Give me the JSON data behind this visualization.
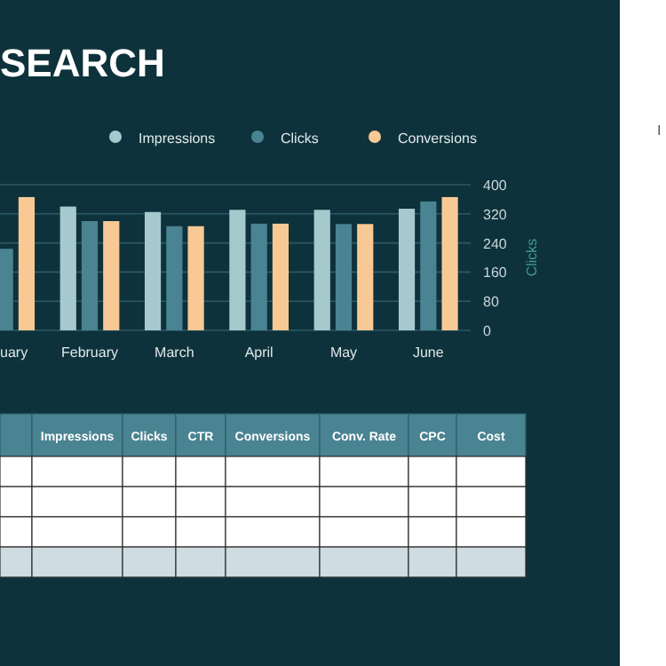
{
  "chart_data": [
    {
      "type": "bar",
      "title": "SEARCH",
      "categories": [
        "uary",
        "February",
        "March",
        "April",
        "May",
        "June"
      ],
      "series": [
        {
          "name": "Impressions",
          "color": "#a6c9ce",
          "values": [
            null,
            340,
            325,
            331,
            331,
            334
          ]
        },
        {
          "name": "Clicks",
          "color": "#4a8391",
          "values": [
            224,
            300,
            286,
            293,
            292,
            354
          ]
        },
        {
          "name": "Conversions",
          "color": "#f8c995",
          "values": [
            366,
            300,
            286,
            293,
            292,
            366
          ]
        }
      ],
      "ylabel": "Clicks",
      "ylim": [
        0,
        400
      ],
      "yticks": [
        0,
        80,
        160,
        240,
        320,
        400
      ],
      "grid": "y",
      "legend": "top",
      "annotations": [
        "I"
      ]
    },
    {
      "type": "other",
      "categories": [
        null,
        "Impressions",
        "Clicks",
        "CTR",
        "Conversions",
        "Conv. Rate",
        "CPC",
        "Cost"
      ]
    }
  ]
}
